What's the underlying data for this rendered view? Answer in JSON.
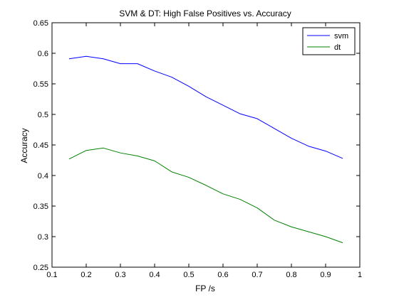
{
  "chart_data": {
    "type": "line",
    "title": "SVM & DT: High False Positives vs. Accuracy",
    "xlabel": "FP /s",
    "ylabel": "Accuracy",
    "xlim": [
      0.1,
      1.0
    ],
    "ylim": [
      0.25,
      0.65
    ],
    "xticks": [
      "0.1",
      "0.2",
      "0.3",
      "0.4",
      "0.5",
      "0.6",
      "0.7",
      "0.8",
      "0.9",
      "1"
    ],
    "yticks": [
      "0.25",
      "0.3",
      "0.35",
      "0.4",
      "0.45",
      "0.5",
      "0.55",
      "0.6",
      "0.65"
    ],
    "grid": false,
    "legend_position": "top-right",
    "x": [
      0.15,
      0.2,
      0.25,
      0.3,
      0.35,
      0.4,
      0.45,
      0.5,
      0.55,
      0.6,
      0.65,
      0.7,
      0.75,
      0.8,
      0.85,
      0.9,
      0.95
    ],
    "series": [
      {
        "name": "svm",
        "color": "#0000ff",
        "values": [
          0.591,
          0.595,
          0.591,
          0.583,
          0.583,
          0.571,
          0.561,
          0.546,
          0.529,
          0.515,
          0.501,
          0.493,
          0.477,
          0.461,
          0.448,
          0.44,
          0.428
        ]
      },
      {
        "name": "dt",
        "color": "#008000",
        "values": [
          0.427,
          0.441,
          0.445,
          0.437,
          0.432,
          0.424,
          0.406,
          0.397,
          0.384,
          0.37,
          0.361,
          0.347,
          0.327,
          0.316,
          0.308,
          0.3,
          0.29
        ]
      }
    ]
  }
}
